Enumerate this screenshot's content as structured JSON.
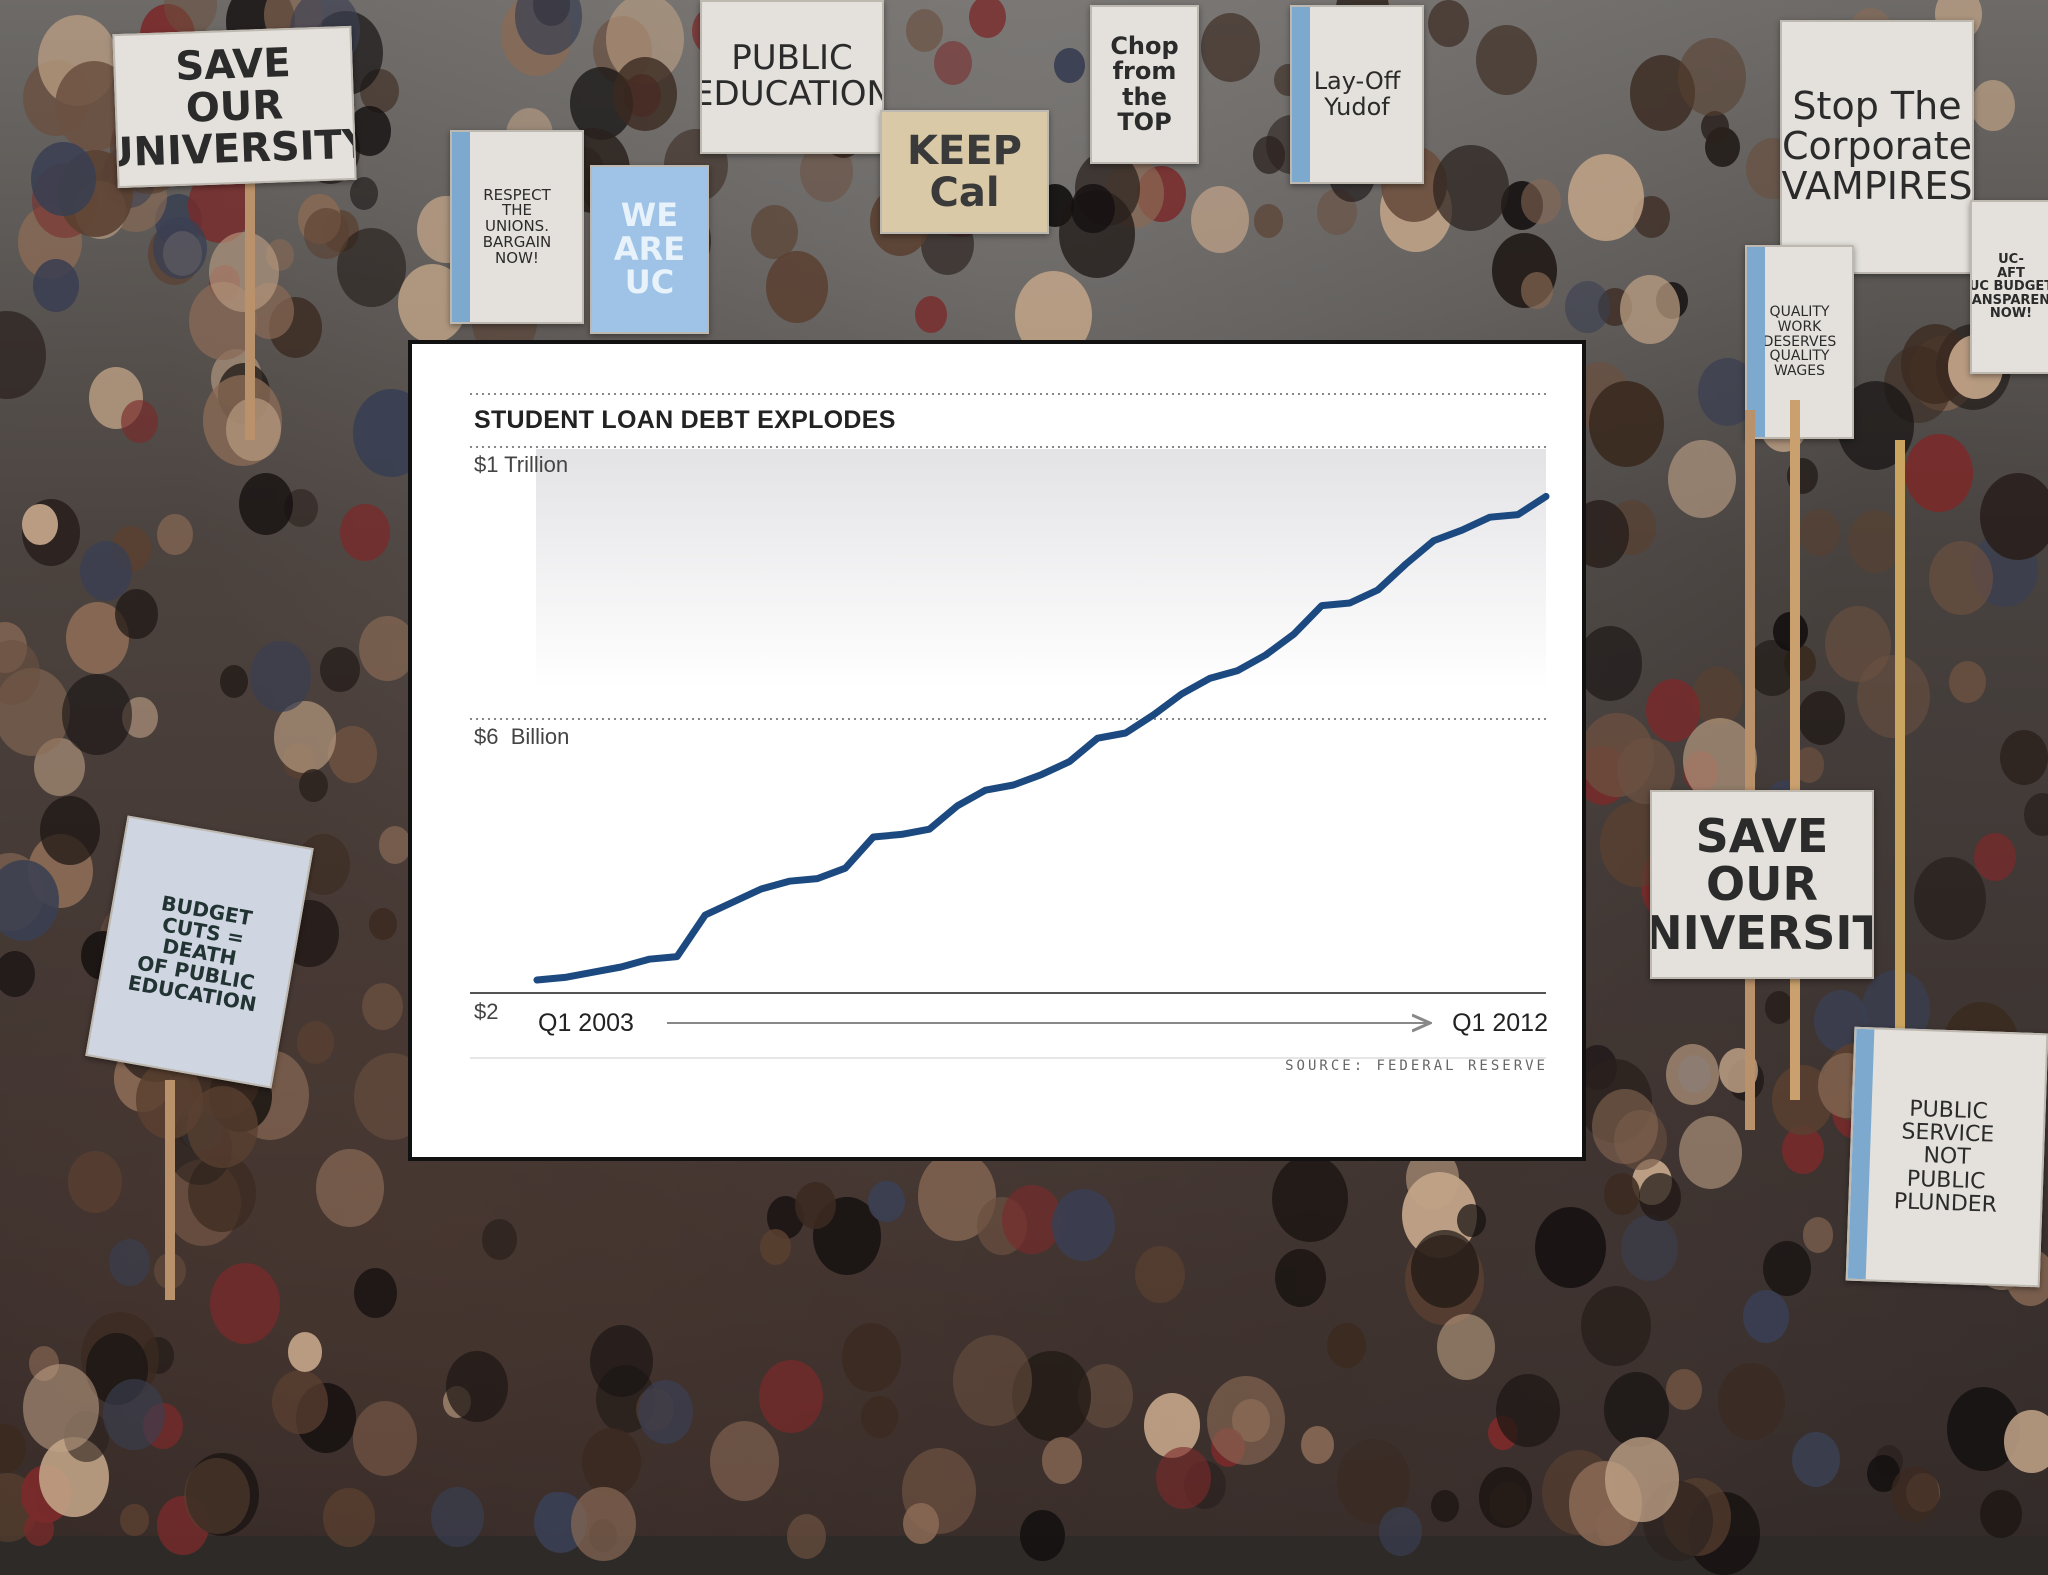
{
  "background_signs": {
    "save_our_university_top": "SAVE\nOUR\nUNIVERSITY",
    "public_education": "PUBLIC\nEDUCATION",
    "we_are_uc": "WE\nARE\nUC",
    "keep_cal": "KEEP\nCal",
    "chop_the_top": "Chop\nfrom the\nTOP",
    "layoff_yudof": "Lay-Off\nYudof",
    "stop_corporate_vampires": "Stop The\nCorporate\nVAMPIRES",
    "quality_work": "QUALITY\nWORK\nDESERVES\nQUALITY\nWAGES",
    "uc_aft": "UC-\nAFT\nUC BUDGET\nTRANSPARENCY\nNOW!",
    "respect_unions": "RESPECT\nTHE\nUNIONS.\nBARGAIN\nNOW!",
    "public_service": "PUBLIC\nSERVICE\nNOT\nPUBLIC\nPLUNDER",
    "save_our_university_right": "SAVE\nOUR\nUNIVERSITY",
    "budget_cuts": "BUDGET\nCUTS =\nDEATH\nOF PUBLIC\nEDUCATION"
  },
  "chart_data": {
    "type": "line",
    "title": "STUDENT LOAN DEBT EXPLODES",
    "y_tick_labels": [
      "$1 Trillion",
      "$6  Billion",
      "$2"
    ],
    "x_start_label": "Q1 2003",
    "x_end_label": "Q1 2012",
    "source": "SOURCE: FEDERAL RESERVE",
    "series": [
      {
        "values": [
          0.05,
          0.06,
          0.08,
          0.1,
          0.13,
          0.14,
          0.3,
          0.35,
          0.4,
          0.43,
          0.44,
          0.48,
          0.6,
          0.61,
          0.63,
          0.72,
          0.78,
          0.8,
          0.84,
          0.89,
          0.98,
          1.0,
          1.07,
          1.15,
          1.21,
          1.24,
          1.3,
          1.38,
          1.49,
          1.5,
          1.55,
          1.65,
          1.74,
          1.78,
          1.83,
          1.84,
          1.91
        ]
      }
    ],
    "line_color": "#1c4a80",
    "grid": "dotted horizontal"
  }
}
